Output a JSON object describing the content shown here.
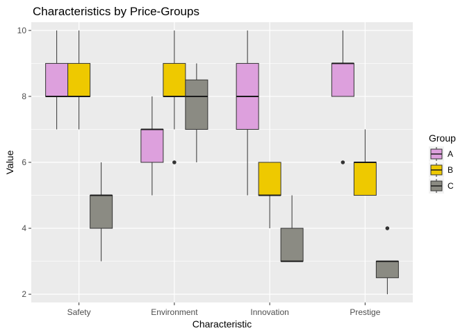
{
  "chart_data": {
    "type": "boxplot",
    "title": "Characteristics by Price-Groups",
    "xlabel": "Characteristic",
    "ylabel": "Value",
    "categories": [
      "Safety",
      "Environment",
      "Innovation",
      "Prestige"
    ],
    "ylim": [
      1.75,
      10.25
    ],
    "yticks": [
      2,
      4,
      6,
      8,
      10
    ],
    "grid": true,
    "legend": {
      "title": "Group",
      "position": "right"
    },
    "series": [
      {
        "name": "A",
        "color": "#DDA0DD",
        "boxes": [
          {
            "min": 7,
            "q1": 8,
            "median": 8,
            "q3": 9,
            "max": 10,
            "outliers": []
          },
          {
            "min": 5,
            "q1": 6,
            "median": 7,
            "q3": 7,
            "max": 8,
            "outliers": []
          },
          {
            "min": 5,
            "q1": 7,
            "median": 8,
            "q3": 9,
            "max": 10,
            "outliers": []
          },
          {
            "min": 8,
            "q1": 8,
            "median": 9,
            "q3": 9,
            "max": 10,
            "outliers": [
              6
            ]
          }
        ]
      },
      {
        "name": "B",
        "color": "#EEC900",
        "boxes": [
          {
            "min": 7,
            "q1": 8,
            "median": 8,
            "q3": 9,
            "max": 10,
            "outliers": []
          },
          {
            "min": 7,
            "q1": 8,
            "median": 8,
            "q3": 9,
            "max": 10,
            "outliers": [
              6
            ]
          },
          {
            "min": 4,
            "q1": 5,
            "median": 5,
            "q3": 6,
            "max": 6,
            "outliers": []
          },
          {
            "min": 5,
            "q1": 5,
            "median": 6,
            "q3": 6,
            "max": 7,
            "outliers": []
          }
        ]
      },
      {
        "name": "C",
        "color": "#8B8B83",
        "boxes": [
          {
            "min": 3,
            "q1": 4,
            "median": 5,
            "q3": 5,
            "max": 6,
            "outliers": []
          },
          {
            "min": 6,
            "q1": 7,
            "median": 8,
            "q3": 8.5,
            "max": 9,
            "outliers": []
          },
          {
            "min": 3,
            "q1": 3,
            "median": 3,
            "q3": 4,
            "max": 5,
            "outliers": []
          },
          {
            "min": 2,
            "q1": 2.5,
            "median": 3,
            "q3": 3,
            "max": 3,
            "outliers": [
              4
            ]
          }
        ]
      }
    ]
  }
}
